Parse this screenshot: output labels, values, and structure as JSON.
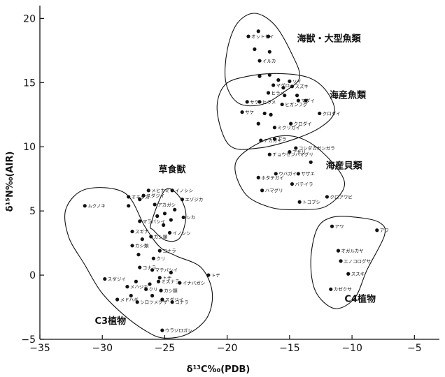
{
  "chart_data": {
    "type": "scatter",
    "xlabel": "δ¹³C‰(PDB)",
    "ylabel": "δ¹⁵N‰(AIR)",
    "xlim": [
      -35,
      -3
    ],
    "ylim": [
      -5,
      21
    ],
    "x_ticks": [
      "−35",
      "−30",
      "−25",
      "−20",
      "−15",
      "−10",
      "−5"
    ],
    "x_tick_values": [
      -35,
      -30,
      -25,
      -20,
      -15,
      -10,
      -5
    ],
    "y_ticks": [
      "−5",
      "0",
      "5",
      "10",
      "15",
      "20"
    ],
    "y_tick_values": [
      -5,
      0,
      5,
      10,
      15,
      20
    ],
    "grid": false,
    "groups": [
      {
        "label": "海獣・大型魚類",
        "label_at": [
          -14.4,
          18.2
        ],
        "outline": [
          [
            -20,
            17.5
          ],
          [
            -19.2,
            19.6
          ],
          [
            -17.8,
            20.4
          ],
          [
            -16.2,
            19.5
          ],
          [
            -14.8,
            17.2
          ],
          [
            -14.2,
            15.4
          ],
          [
            -15.4,
            14.3
          ],
          [
            -17.2,
            13.3
          ],
          [
            -19.1,
            13.4
          ],
          [
            -20.1,
            15
          ]
        ]
      },
      {
        "label": "海産魚類",
        "label_at": [
          -11.8,
          13.8
        ],
        "outline": [
          [
            -20.8,
            12.8
          ],
          [
            -20.2,
            14.8
          ],
          [
            -18.3,
            15.5
          ],
          [
            -15.8,
            15.7
          ],
          [
            -13.5,
            15.4
          ],
          [
            -12.1,
            14.4
          ],
          [
            -11.4,
            12.8
          ],
          [
            -12.4,
            11.6
          ],
          [
            -14.6,
            10.6
          ],
          [
            -17.5,
            9.9
          ],
          [
            -19.8,
            10.1
          ]
        ]
      },
      {
        "label": "海産貝類",
        "label_at": [
          -12.1,
          8.3
        ],
        "outline": [
          [
            -19.3,
            8.8
          ],
          [
            -17,
            10.5
          ],
          [
            -14.6,
            10.8
          ],
          [
            -12.4,
            9.6
          ],
          [
            -10.6,
            7.2
          ],
          [
            -12,
            5.4
          ],
          [
            -14.3,
            5.1
          ],
          [
            -16.6,
            5.3
          ],
          [
            -18.6,
            6.4
          ]
        ]
      },
      {
        "label": "草食獣",
        "label_at": [
          -25.5,
          8
        ],
        "outline": [
          [
            -26.1,
            4
          ],
          [
            -25,
            6.6
          ],
          [
            -23.9,
            6.2
          ],
          [
            -23.3,
            4.7
          ],
          [
            -23.8,
            2.9
          ],
          [
            -24.9,
            2.7
          ],
          [
            -25.9,
            3.5
          ]
        ]
      },
      {
        "label": "C3植物",
        "label_at": [
          -30.6,
          -3.8
        ],
        "outline": [
          [
            -32.9,
            5.2
          ],
          [
            -31.3,
            6.7
          ],
          [
            -28.2,
            6.4
          ],
          [
            -26.6,
            3.8
          ],
          [
            -25.4,
            2.2
          ],
          [
            -24.1,
            1.5
          ],
          [
            -22.1,
            0.6
          ],
          [
            -21.2,
            -1.3
          ],
          [
            -21.6,
            -3.3
          ],
          [
            -23.2,
            -4.6
          ],
          [
            -25.1,
            -4.9
          ],
          [
            -26.6,
            -4.3
          ],
          [
            -28.4,
            -3
          ],
          [
            -30.1,
            -1.3
          ],
          [
            -31.4,
            0.8
          ],
          [
            -32.7,
            3
          ]
        ]
      },
      {
        "label": "C4植物",
        "label_at": [
          -10.6,
          -2.1
        ],
        "outline": [
          [
            -12.8,
            3.6
          ],
          [
            -11.6,
            4.5
          ],
          [
            -9.6,
            4.5
          ],
          [
            -7.8,
            4.1
          ],
          [
            -7.4,
            3.1
          ],
          [
            -8.8,
            0.4
          ],
          [
            -9.8,
            -1.8
          ],
          [
            -11.4,
            -2.6
          ],
          [
            -12.9,
            -1.3
          ],
          [
            -13.3,
            1.1
          ]
        ]
      }
    ],
    "series": [
      {
        "name": "ラベル付き点",
        "points": [
          {
            "label": "オットセイ",
            "x": -18.3,
            "y": 18.6
          },
          {
            "label": "イルカ",
            "x": -17.4,
            "y": 16.7
          },
          {
            "label": "マグロ",
            "x": -16.3,
            "y": 14.8
          },
          {
            "label": "ソイ",
            "x": -15,
            "y": 15.1
          },
          {
            "label": "ヒラメ",
            "x": -16.7,
            "y": 14.2
          },
          {
            "label": "スズキ",
            "x": -14.8,
            "y": 14.7
          },
          {
            "label": "サケ",
            "x": -18.4,
            "y": 13.5
          },
          {
            "label": "ヒラメ",
            "x": -17.4,
            "y": 13.5
          },
          {
            "label": "ヒガンフグ",
            "x": -15.6,
            "y": 13.3
          },
          {
            "label": "マダイ",
            "x": -14.3,
            "y": 13.6
          },
          {
            "label": "クロダイ",
            "x": -12.6,
            "y": 12.6
          },
          {
            "label": "サケ",
            "x": -18.8,
            "y": 12.7
          },
          {
            "label": "クロダイ",
            "x": -14.9,
            "y": 11.8
          },
          {
            "label": "ミクリガイ",
            "x": -16.2,
            "y": 11.5
          },
          {
            "label": "アカガイ",
            "x": -17.3,
            "y": 10.5
          },
          {
            "label": "ボラ",
            "x": -16.2,
            "y": 10.6
          },
          {
            "label": "コシダカガンガラ",
            "x": -14.5,
            "y": 9.9
          },
          {
            "label": "チョウセンハマグリ",
            "x": -16.6,
            "y": 9.4
          },
          {
            "label": "アサリ",
            "x": -15,
            "y": 9.6
          },
          {
            "label": "ホタテガイ",
            "x": -17.5,
            "y": 7.6
          },
          {
            "label": "ウバガイ",
            "x": -16.1,
            "y": 7.9
          },
          {
            "label": "サザエ",
            "x": -14.3,
            "y": 7.9
          },
          {
            "label": "バテイラ",
            "x": -14.8,
            "y": 7.1
          },
          {
            "label": "ハマグリ",
            "x": -17.2,
            "y": 6.6
          },
          {
            "label": "トコブシ",
            "x": -14.2,
            "y": 5.7
          },
          {
            "label": "クロアワビ",
            "x": -12,
            "y": 6.1
          },
          {
            "label": "イノシシ",
            "x": -24.4,
            "y": 6.6
          },
          {
            "label": "エゾジカ",
            "x": -23.6,
            "y": 5.9
          },
          {
            "label": "シカ",
            "x": -23.5,
            "y": 4.5
          },
          {
            "label": "イノシシ",
            "x": -24.6,
            "y": 3.3
          },
          {
            "label": "オモダカ",
            "x": -27.9,
            "y": 6.1
          },
          {
            "label": "メヒナミ",
            "x": -26.3,
            "y": 6.6
          },
          {
            "label": "スダジイ",
            "x": -26.7,
            "y": 6.2
          },
          {
            "label": "アカガシ",
            "x": -25.8,
            "y": 5.5
          },
          {
            "label": "ムクノキ",
            "x": -31.4,
            "y": 5.4
          },
          {
            "label": "マラバシイ",
            "x": -27,
            "y": 4.2
          },
          {
            "label": "スギナ",
            "x": -27.6,
            "y": 3.4
          },
          {
            "label": "カシ類",
            "x": -26.1,
            "y": 3
          },
          {
            "label": "カシ類",
            "x": -27.6,
            "y": 2.3
          },
          {
            "label": "コナラ",
            "x": -25.4,
            "y": 1.9
          },
          {
            "label": "クリ",
            "x": -25.9,
            "y": 1.3
          },
          {
            "label": "コナラ",
            "x": -27,
            "y": 0.6
          },
          {
            "label": "マテバシイ",
            "x": -26,
            "y": 0.4
          },
          {
            "label": "トチ",
            "x": -25.4,
            "y": -0.2
          },
          {
            "label": "トチ",
            "x": -21.5,
            "y": 0
          },
          {
            "label": "スダジイ",
            "x": -29.8,
            "y": -0.3
          },
          {
            "label": "ミズナラ",
            "x": -25.5,
            "y": -0.5
          },
          {
            "label": "イナバガシ",
            "x": -23.8,
            "y": -0.6
          },
          {
            "label": "メハジキ",
            "x": -28,
            "y": -0.9
          },
          {
            "label": "クリ",
            "x": -26.5,
            "y": -1.1
          },
          {
            "label": "カシ類",
            "x": -25.3,
            "y": -1.2
          },
          {
            "label": "スダジイ",
            "x": -25.2,
            "y": -1.9
          },
          {
            "label": "メドハギ",
            "x": -28.8,
            "y": -1.9
          },
          {
            "label": "シロツメグサ",
            "x": -27.2,
            "y": -2.1
          },
          {
            "label": "コナラ",
            "x": -24.4,
            "y": -2.1
          },
          {
            "label": "ウラジロガシ",
            "x": -25.2,
            "y": -4.3
          },
          {
            "label": "アワ",
            "x": -11.6,
            "y": 3.8
          },
          {
            "label": "アワ",
            "x": -8,
            "y": 3.5
          },
          {
            "label": "オガルカヤ",
            "x": -11.1,
            "y": 1.9
          },
          {
            "label": "エノコログサ",
            "x": -10.9,
            "y": 1.1
          },
          {
            "label": "ススキ",
            "x": -10.3,
            "y": 0.1
          },
          {
            "label": "カゼクサ",
            "x": -11.7,
            "y": -1.1
          }
        ]
      },
      {
        "name": "ラベルなし点",
        "points": [
          {
            "x": -17.5,
            "y": 19
          },
          {
            "x": -16.7,
            "y": 18.6
          },
          {
            "x": -17.8,
            "y": 17.6
          },
          {
            "x": -16.6,
            "y": 17.4
          },
          {
            "x": -17.4,
            "y": 15.5
          },
          {
            "x": -16.6,
            "y": 15.6
          },
          {
            "x": -15.9,
            "y": 15.2
          },
          {
            "x": -15.5,
            "y": 14.6
          },
          {
            "x": -14.4,
            "y": 14
          },
          {
            "x": -15.4,
            "y": 14
          },
          {
            "x": -13.7,
            "y": 13.6
          },
          {
            "x": -17,
            "y": 12.6
          },
          {
            "x": -16.5,
            "y": 12.5
          },
          {
            "x": -17.5,
            "y": 11.8
          },
          {
            "x": -13.3,
            "y": 8.8
          },
          {
            "x": -27.9,
            "y": 5.4
          },
          {
            "x": -27,
            "y": 5.9
          },
          {
            "x": -25,
            "y": 4.8
          },
          {
            "x": -25.6,
            "y": 4.6
          },
          {
            "x": -24.2,
            "y": 5.1
          },
          {
            "x": -25.1,
            "y": 3.9
          },
          {
            "x": -24.5,
            "y": 4.3
          },
          {
            "x": -26.8,
            "y": 2.8
          },
          {
            "x": -27.1,
            "y": 1.6
          },
          {
            "x": -27.3,
            "y": -0.5
          },
          {
            "x": -26.2,
            "y": -0.7
          },
          {
            "x": -27.7,
            "y": -1.6
          },
          {
            "x": -26,
            "y": -1.6
          },
          {
            "x": -24.5,
            "y": 0.2
          }
        ]
      }
    ]
  }
}
